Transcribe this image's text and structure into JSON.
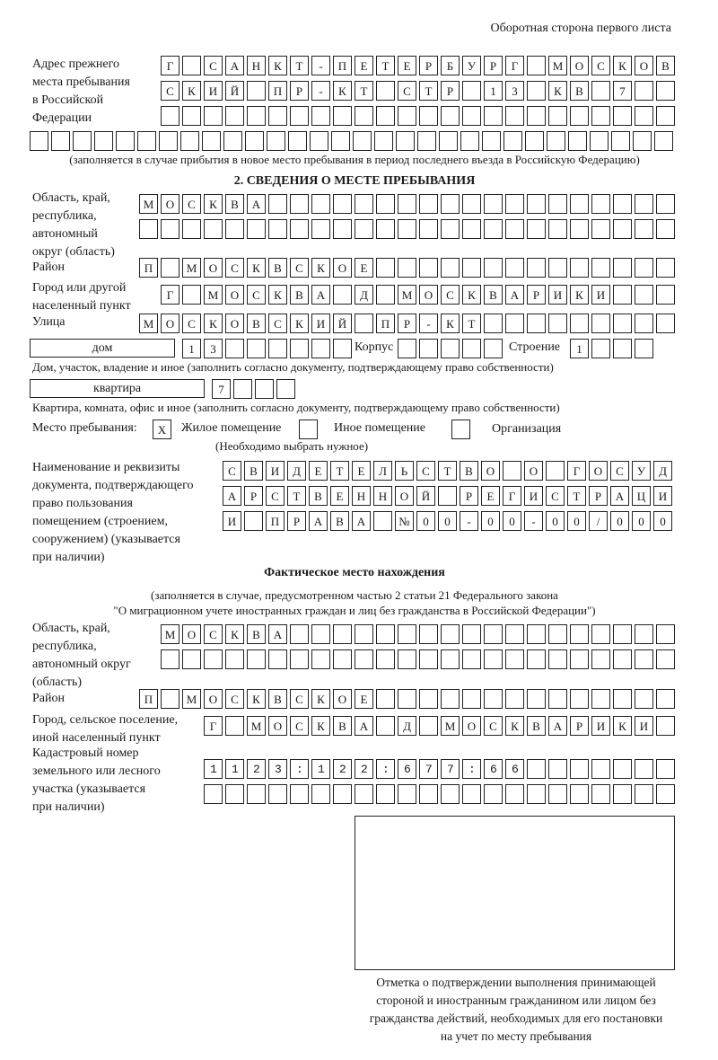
{
  "header": {
    "side_label": "Оборотная сторона первого листа"
  },
  "prev_address": {
    "label": "Адрес прежнего\nместа пребывания\nв Российской\nФедерации",
    "rows": [
      "Г САНКТ-ПЕТЕРБУРГ МОСКОВ",
      "СКИЙ ПР-КТ СТР 13 КВ 7  ",
      "                        ",
      "                              "
    ],
    "note": "(заполняется в случае прибытия в новое место пребывания в период последнего въезда в Российскую Федерацию)"
  },
  "section2": {
    "title": "2. СВЕДЕНИЯ О МЕСТЕ ПРЕБЫВАНИЯ",
    "region": {
      "label": "Область, край,\nреспублика,\nавтономный\nокруг (область)",
      "rows": [
        "МОСКВА                   ",
        "                         "
      ]
    },
    "district": {
      "label": "Район",
      "row": "П МОСКВСКОЕ              "
    },
    "city": {
      "label": "Город или другой\nнаселенный пункт",
      "row": "Г МОСКВА Д МОСКВАРИКИ   "
    },
    "street": {
      "label": "Улица",
      "row": "МОСКОВСКИЙ ПР-КТ         "
    },
    "house": {
      "type": "дом",
      "number": "13      ",
      "korpus_label": "Корпус",
      "korpus": "     ",
      "building_label": "Строение",
      "building": "1   "
    },
    "house_note": "Дом, участок, владение и иное (заполнить согласно документу, подтверждающему право собственности)",
    "apartment": {
      "type": "квартира",
      "number": "7   "
    },
    "apartment_note": "Квартира, комната, офис и иное (заполнить согласно документу, подтверждающему право собственности)",
    "place_type": {
      "label": "Место пребывания:",
      "options": [
        {
          "label": "Жилое помещение",
          "mark": "X",
          "checked": true
        },
        {
          "label": "Иное помещение",
          "mark": "",
          "checked": false
        },
        {
          "label": "Организация",
          "mark": "",
          "checked": false
        }
      ],
      "hint": "(Необходимо выбрать нужное)"
    },
    "document": {
      "label": "Наименование и реквизиты\nдокумента, подтверждающего\nправо пользования\nпомещением (строением,\nсооружением) (указывается\nпри наличии)",
      "rows": [
        "СВИДЕТЕЛЬСТВО О ГОСУД",
        "АРСТВЕННОЙ РЕГИСТРАЦИ",
        "И ПРАВА №00-00-00/000"
      ]
    }
  },
  "actual": {
    "title": "Фактическое место нахождения",
    "note_line1": "(заполняется в случае, предусмотренном частью 2 статьи 21 Федерального закона",
    "note_line2": "\"О миграционном учете иностранных граждан и лиц без гражданства в Российской Федерации\")",
    "region": {
      "label": "Область, край,\nреспублика,\nавтономный округ\n(область)",
      "rows": [
        "МОСКВА                  ",
        "                        "
      ]
    },
    "district": {
      "label": "Район",
      "row": "П МОСКВСКОЕ              "
    },
    "city": {
      "label": "Город, сельское поселение,\nиной населенный пункт",
      "row": "Г МОСКВА Д МОСКВАРИКИ "
    },
    "cadastral": {
      "label": "Кадастровый номер\nземельного или лесного\nучастка (указывается\nпри наличии)",
      "rows": [
        "1123:122:677:66       ",
        "                      "
      ]
    }
  },
  "stamp": {
    "caption": "Отметка о подтверждении выполнения принимающей\nстороной и иностранным гражданином или лицом без\nгражданства действий, необходимых для его постановки\nна учет по месту пребывания"
  }
}
